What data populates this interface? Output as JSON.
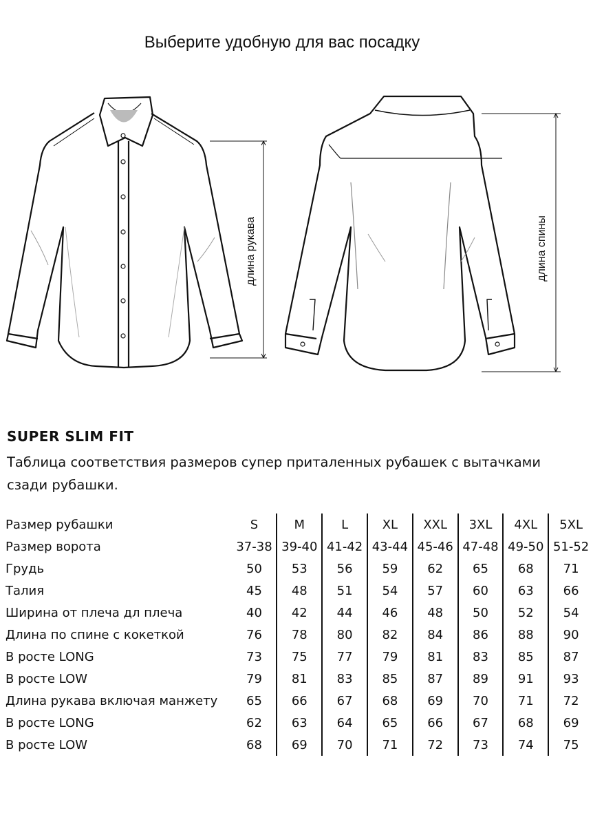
{
  "title": "Выберите удобную для вас посадку",
  "figure_labels": {
    "sleeve_length": "длина рукава",
    "back_length": "длина спины"
  },
  "fit_name": "SUPER SLIM FIT",
  "description": "Таблица соответствия размеров супер приталенных рубашек с вытачками сзади рубашки.",
  "table": {
    "rows": [
      {
        "label": "Размер рубашки",
        "values": [
          "S",
          "M",
          "L",
          "XL",
          "XXL",
          "3XL",
          "4XL",
          "5XL"
        ]
      },
      {
        "label": "Размер ворота",
        "values": [
          "37-38",
          "39-40",
          "41-42",
          "43-44",
          "45-46",
          "47-48",
          "49-50",
          "51-52"
        ]
      },
      {
        "label": "Грудь",
        "values": [
          "50",
          "53",
          "56",
          "59",
          "62",
          "65",
          "68",
          "71"
        ]
      },
      {
        "label": "Талия",
        "values": [
          "45",
          "48",
          "51",
          "54",
          "57",
          "60",
          "63",
          "66"
        ]
      },
      {
        "label": "Ширина от плеча дл плеча",
        "values": [
          "40",
          "42",
          "44",
          "46",
          "48",
          "50",
          "52",
          "54"
        ]
      },
      {
        "label": "Длина по спине с кокеткой",
        "values": [
          "76",
          "78",
          "80",
          "82",
          "84",
          "86",
          "88",
          "90"
        ]
      },
      {
        "label": "В росте LONG",
        "values": [
          "73",
          "75",
          "77",
          "79",
          "81",
          "83",
          "85",
          "87"
        ]
      },
      {
        "label": "В росте LOW",
        "values": [
          "79",
          "81",
          "83",
          "85",
          "87",
          "89",
          "91",
          "93"
        ]
      },
      {
        "label": "Длина рукава включая манжету",
        "values": [
          "65",
          "66",
          "67",
          "68",
          "69",
          "70",
          "71",
          "72"
        ]
      },
      {
        "label": "В росте LONG",
        "values": [
          "62",
          "63",
          "64",
          "65",
          "66",
          "67",
          "68",
          "69"
        ]
      },
      {
        "label": "В росте LOW",
        "values": [
          "68",
          "69",
          "70",
          "71",
          "72",
          "73",
          "74",
          "75"
        ]
      }
    ]
  }
}
